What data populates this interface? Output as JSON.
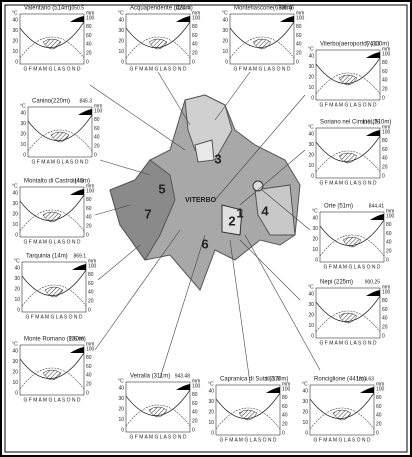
{
  "city": "VITERBO",
  "regions": [
    "1",
    "2",
    "3",
    "4",
    "5",
    "6",
    "7"
  ],
  "axis": {
    "temp_unit": "°C",
    "precip_unit": "mm",
    "temp_ticks": [
      "40",
      "30",
      "20",
      "10",
      "0"
    ],
    "precip_ticks": [
      "100",
      "80",
      "60",
      "40",
      "20",
      "0"
    ],
    "months": "G F M A M G L A S O N D"
  },
  "stations": [
    {
      "name": "Valentano (514m)",
      "precip": "1050.5"
    },
    {
      "name": "Acquapendente (425m)",
      "precip": "1164.4"
    },
    {
      "name": "Montefiascone(633m)",
      "precip": "986.46"
    },
    {
      "name": "Viterbo(aeroporto) (300m)",
      "precip": "774.13"
    },
    {
      "name": "Canino(220m)",
      "precip": "845.3"
    },
    {
      "name": "Soriano nel Cimino (510m)",
      "precip": "1161.25"
    },
    {
      "name": "Montalto di Castro (46m)",
      "precip": "814.8"
    },
    {
      "name": "Orte (51m)",
      "precip": "844.41"
    },
    {
      "name": "Tarquinia (14m)",
      "precip": "869.1"
    },
    {
      "name": "Nepi (225m)",
      "precip": "900.25"
    },
    {
      "name": "Monte Romano (230m)",
      "precip": "915.09"
    },
    {
      "name": "Vetralla (311m)",
      "precip": "943.48"
    },
    {
      "name": "Capranica di Sutri (370m)",
      "precip": "1071.8"
    },
    {
      "name": "Ronciglione (441m)",
      "precip": "1214.63"
    }
  ]
}
